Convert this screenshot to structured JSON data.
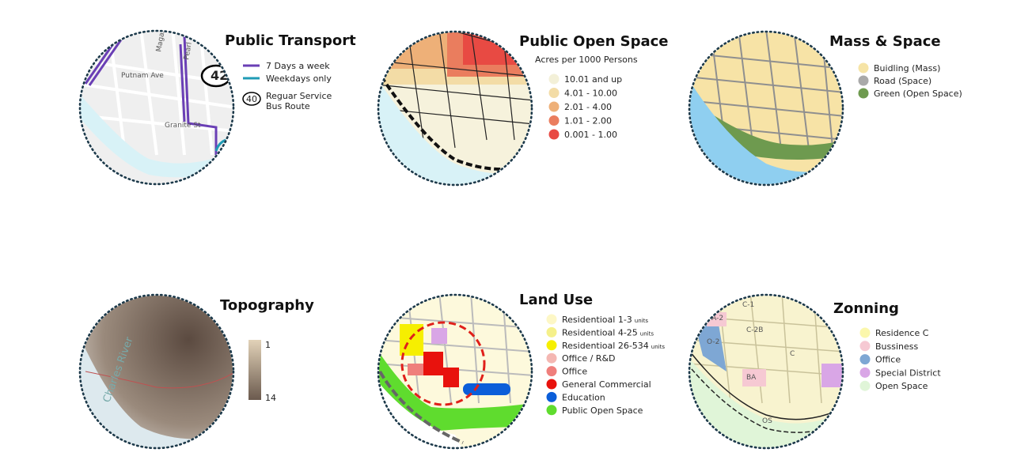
{
  "panels": [
    {
      "title": "Public Transport",
      "legend": [
        {
          "label": "7 Days a week",
          "color": "#6a3fb5",
          "kind": "line"
        },
        {
          "label": "Weekdays only",
          "color": "#1f9bb5",
          "kind": "line"
        },
        {
          "label": "Reguar Service",
          "label2": "Bus Route",
          "badge": "40",
          "kind": "badge"
        }
      ],
      "map_labels": [
        "Putnam Ave",
        "Granite St",
        "Magaz",
        "Pearl",
        "42"
      ]
    },
    {
      "title": "Public Open Space",
      "subtitle": "Acres per 1000 Persons",
      "legend": [
        {
          "label": "10.01 and up",
          "color": "#f3f0d8"
        },
        {
          "label": "4.01 - 10.00",
          "color": "#f3dca6"
        },
        {
          "label": "2.01 - 4.00",
          "color": "#eeb078"
        },
        {
          "label": "1.01 - 2.00",
          "color": "#ea7d5e"
        },
        {
          "label": "0.001 - 1.00",
          "color": "#e84a43"
        }
      ]
    },
    {
      "title": "Mass & Space",
      "legend": [
        {
          "label": "Buidling (Mass)",
          "color": "#f6e4a6"
        },
        {
          "label": "Road (Space)",
          "color": "#a9a9a9"
        },
        {
          "label": "Green (Open Space)",
          "color": "#6e9a4f"
        }
      ]
    },
    {
      "title": "Topography",
      "scale": {
        "top": "1",
        "bottom": "14"
      },
      "map_labels": [
        "Charles River"
      ]
    },
    {
      "title": "Land Use",
      "legend": [
        {
          "label": "Residentioal 1-3",
          "unit": "units",
          "color": "#fdf7c6"
        },
        {
          "label": "Residentioal 4-25",
          "unit": "units",
          "color": "#f5f08a"
        },
        {
          "label": "Residentioal 26-534",
          "unit": "units",
          "color": "#f6ef00"
        },
        {
          "label": "Office / R&D",
          "color": "#f4b7b2"
        },
        {
          "label": "Office",
          "color": "#ef7f7c"
        },
        {
          "label": "General Commercial",
          "color": "#e8120d"
        },
        {
          "label": "Education",
          "color": "#0b5ed9"
        },
        {
          "label": "Public Open Space",
          "color": "#5fdc2e"
        }
      ]
    },
    {
      "title": "Zonning",
      "legend": [
        {
          "label": "Residence C",
          "color": "#fbf7ac"
        },
        {
          "label": "Bussiness",
          "color": "#f6c9d3"
        },
        {
          "label": "Office",
          "color": "#7ea7d4"
        },
        {
          "label": "Special District",
          "color": "#d9a6e6"
        },
        {
          "label": "Open Space",
          "color": "#e0f5d8"
        }
      ],
      "map_labels": [
        "C-1",
        "BA-2",
        "C-2B",
        "O-2",
        "C",
        "BA",
        "OS"
      ]
    }
  ]
}
